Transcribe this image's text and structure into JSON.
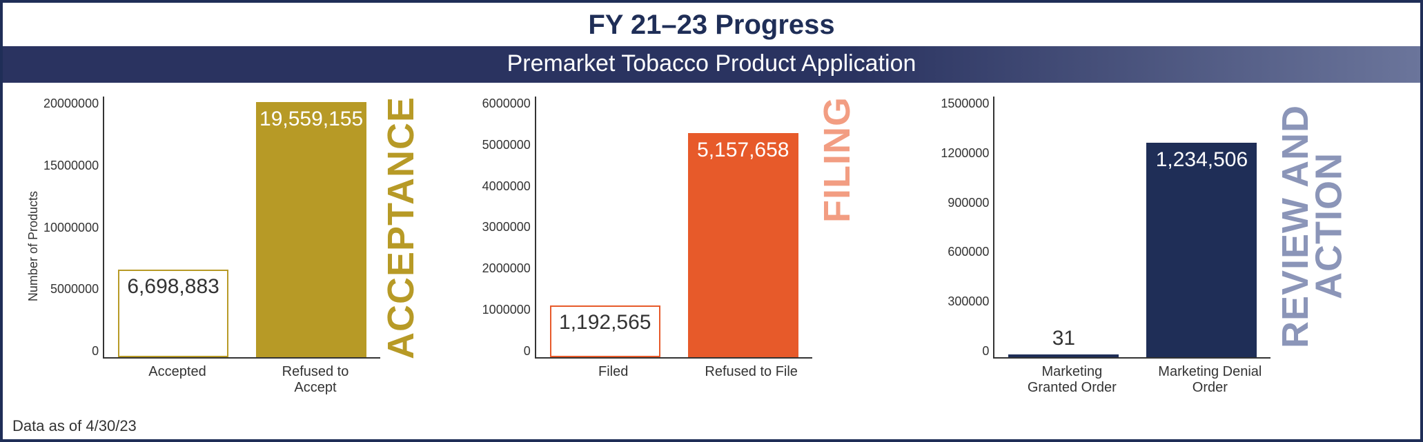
{
  "title": "FY 21–23 Progress",
  "subtitle": "Premarket Tobacco Product Application",
  "footer": "Data as of 4/30/23",
  "y_axis_label": "Number of Products",
  "colors": {
    "frame_border": "#1f2e57",
    "title_text": "#1f2e57",
    "subtitle_bg_start": "#2a3360",
    "subtitle_bg_end": "#6b759b",
    "axis": "#333333"
  },
  "panels": [
    {
      "id": "acceptance",
      "category_label": "ACCEPTANCE",
      "category_color": "#b79a26",
      "ymax": 20000000,
      "ytick_step": 5000000,
      "ticks": [
        "20000000",
        "15000000",
        "10000000",
        "5000000",
        "0"
      ],
      "bars": [
        {
          "label": "Accepted",
          "value": 6698883,
          "display": "6,698,883",
          "style": "outline",
          "fill": "#ffffff",
          "border": "#b79a26"
        },
        {
          "label": "Refused to Accept",
          "value": 19559155,
          "display": "19,559,155",
          "style": "solid",
          "fill": "#b79a26",
          "border": "#b79a26"
        }
      ]
    },
    {
      "id": "filing",
      "category_label": "FILING",
      "category_color": "#f29d82",
      "ymax": 6000000,
      "ytick_step": 1000000,
      "ticks": [
        "6000000",
        "5000000",
        "4000000",
        "3000000",
        "2000000",
        "1000000",
        "0"
      ],
      "bars": [
        {
          "label": "Filed",
          "value": 1192565,
          "display": "1,192,565",
          "style": "outline",
          "fill": "#ffffff",
          "border": "#e75a2a"
        },
        {
          "label": "Refused to File",
          "value": 5157658,
          "display": "5,157,658",
          "style": "solid",
          "fill": "#e75a2a",
          "border": "#e75a2a"
        }
      ]
    },
    {
      "id": "review",
      "category_label": "REVIEW AND ACTION",
      "category_color": "#8b95b8",
      "ymax": 1500000,
      "ytick_step": 300000,
      "ticks": [
        "1500000",
        "1200000",
        "900000",
        "600000",
        "300000",
        "0"
      ],
      "bars": [
        {
          "label": "Marketing Granted Order",
          "value": 31,
          "display": "31",
          "style": "outline",
          "fill": "#ffffff",
          "border": "#1f2e57",
          "tiny": true
        },
        {
          "label": "Marketing Denial Order",
          "value": 1234506,
          "display": "1,234,506",
          "style": "solid",
          "fill": "#1f2e57",
          "border": "#1f2e57"
        }
      ]
    }
  ]
}
